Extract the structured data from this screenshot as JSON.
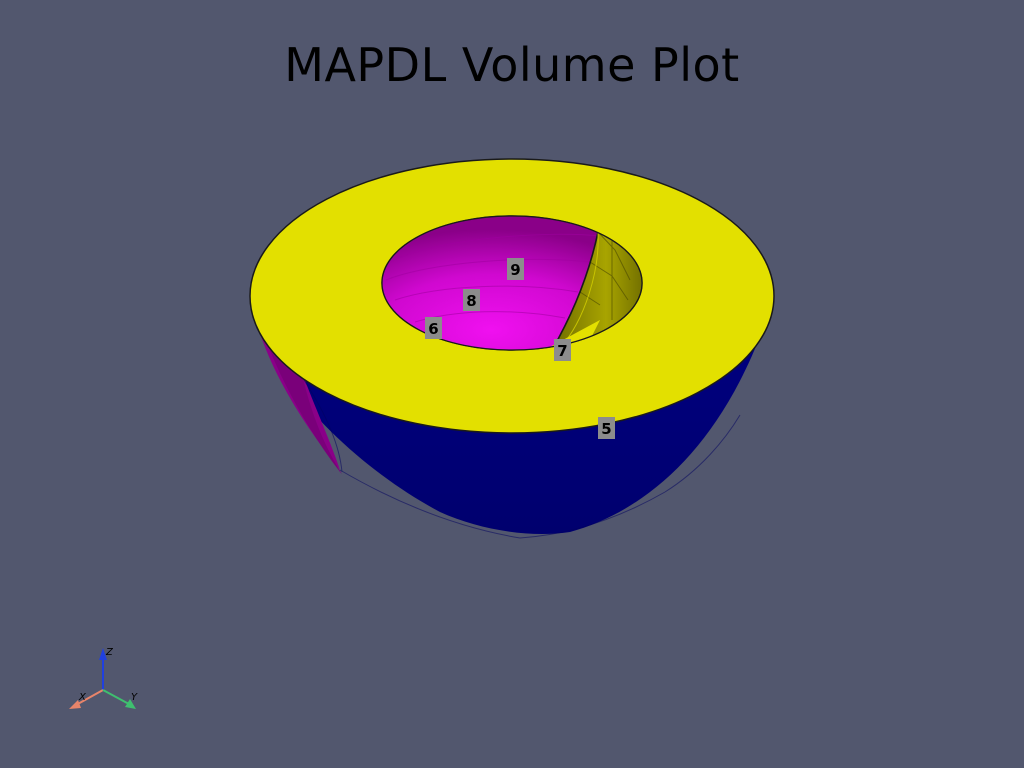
{
  "title": "MAPDL Volume Plot",
  "volume_labels": {
    "v5": "5",
    "v6": "6",
    "v7": "7",
    "v8": "8",
    "v9": "9"
  },
  "axes": {
    "x": "X",
    "y": "Y",
    "z": "Z"
  },
  "colors": {
    "background": "#52576e",
    "volume_5_top": "#e3e000",
    "volume_5_side": "#00007a",
    "volume_6": "#e010e0",
    "volume_7": "#b8b400",
    "axis_x": "#e8846a",
    "axis_y": "#3fbf6f",
    "axis_z": "#2040e0"
  }
}
